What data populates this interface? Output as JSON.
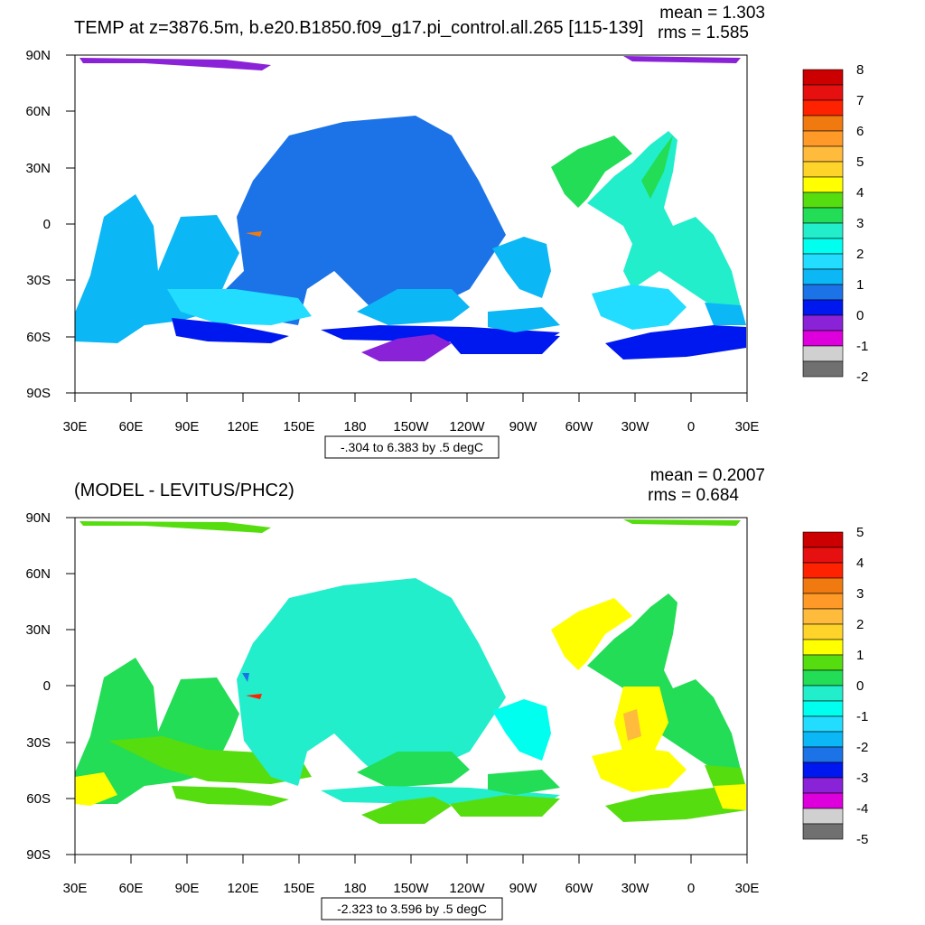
{
  "panels": [
    {
      "title": "TEMP at z=3876.5m, b.e20.B1850.f09_g17.pi_control.all.265 [115-139]",
      "stats": {
        "mean": "mean = 1.303",
        "rms": "rms = 1.585"
      },
      "x_ticks": [
        "30E",
        "60E",
        "90E",
        "120E",
        "150E",
        "180",
        "150W",
        "120W",
        "90W",
        "60W",
        "30W",
        "0",
        "30E"
      ],
      "y_ticks": [
        "90N",
        "60N",
        "30N",
        "0",
        "30S",
        "60S",
        "90S"
      ],
      "range_note": "-.304 to 6.383 by .5 degC",
      "colorbar_labels": [
        "8",
        "7",
        "6",
        "5",
        "4",
        "3",
        "2",
        "1",
        "0",
        "-1",
        "-2"
      ],
      "colorbar_colors": [
        "#cc0000",
        "#e61010",
        "#ff2200",
        "#f07a10",
        "#ff9a28",
        "#ffbb3c",
        "#ffd42a",
        "#ffff00",
        "#55dd10",
        "#22dd55",
        "#22eecc",
        "#00ffee",
        "#22ddff",
        "#0bb7f5",
        "#1c73e8",
        "#0018f0",
        "#8a22d8",
        "#dd00dd",
        "#d0d0d0",
        "#707070"
      ]
    },
    {
      "title": "(MODEL - LEVITUS/PHC2)",
      "stats": {
        "mean": "mean = 0.2007",
        "rms": "rms = 0.684"
      },
      "x_ticks": [
        "30E",
        "60E",
        "90E",
        "120E",
        "150E",
        "180",
        "150W",
        "120W",
        "90W",
        "60W",
        "30W",
        "0",
        "30E"
      ],
      "y_ticks": [
        "90N",
        "60N",
        "30N",
        "0",
        "30S",
        "60S",
        "90S"
      ],
      "range_note": "-2.323 to 3.596 by .5 degC",
      "colorbar_labels": [
        "5",
        "4",
        "3",
        "2",
        "1",
        "0",
        "-1",
        "-2",
        "-3",
        "-4",
        "-5"
      ],
      "colorbar_colors": [
        "#cc0000",
        "#e61010",
        "#ff2200",
        "#f07a10",
        "#ff9a28",
        "#ffbb3c",
        "#ffd42a",
        "#ffff00",
        "#55dd10",
        "#22dd55",
        "#22eecc",
        "#00ffee",
        "#22ddff",
        "#0bb7f5",
        "#1c73e8",
        "#0018f0",
        "#8a22d8",
        "#dd00dd",
        "#d0d0d0",
        "#707070"
      ]
    }
  ],
  "chart_data": [
    {
      "type": "heatmap",
      "title": "TEMP at z=3876.5m, b.e20.B1850.f09_g17.pi_control.all.265 [115-139]",
      "mean": 1.303,
      "rms": 1.585,
      "units": "degC",
      "contour_min": -0.304,
      "contour_max": 6.383,
      "contour_interval": 0.5,
      "xlim": [
        "30E",
        "30E"
      ],
      "ylim": [
        "90S",
        "90N"
      ],
      "colorbar_range": [
        -2,
        8
      ],
      "grid": false,
      "legend": "right"
    },
    {
      "type": "heatmap",
      "title": "(MODEL - LEVITUS/PHC2)",
      "mean": 0.2007,
      "rms": 0.684,
      "units": "degC",
      "contour_min": -2.323,
      "contour_max": 3.596,
      "contour_interval": 0.5,
      "xlim": [
        "30E",
        "30E"
      ],
      "ylim": [
        "90S",
        "90N"
      ],
      "colorbar_range": [
        -5,
        5
      ],
      "grid": false,
      "legend": "right"
    }
  ]
}
